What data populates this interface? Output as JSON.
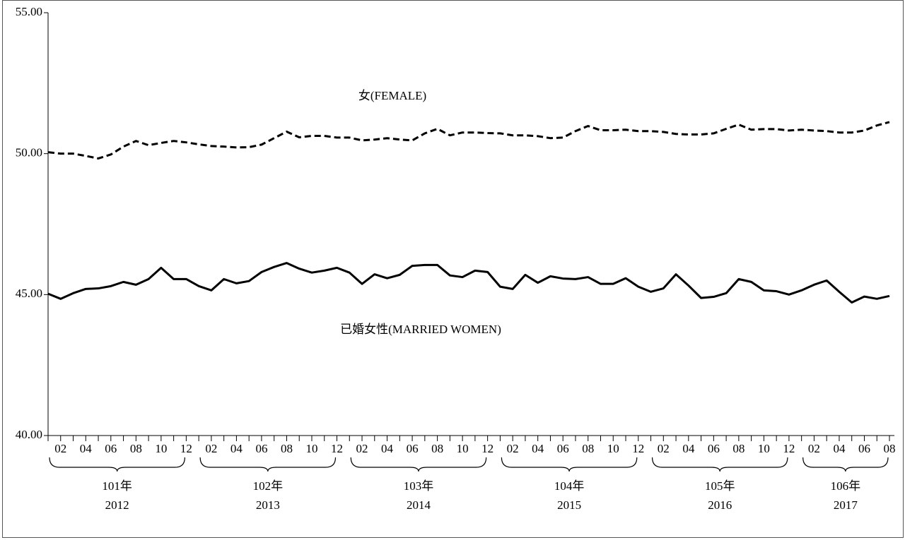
{
  "chart_data": {
    "type": "line",
    "categories": [
      null,
      "02",
      null,
      "04",
      null,
      "06",
      null,
      "08",
      null,
      "10",
      null,
      "12",
      null,
      "02",
      null,
      "04",
      null,
      "06",
      null,
      "08",
      null,
      "10",
      null,
      "12",
      null,
      "02",
      null,
      "04",
      null,
      "06",
      null,
      "08",
      null,
      "10",
      null,
      "12",
      null,
      "02",
      null,
      "04",
      null,
      "06",
      null,
      "08",
      null,
      "10",
      null,
      "12",
      null,
      "02",
      null,
      "04",
      null,
      "06",
      null,
      "08",
      null,
      "10",
      null,
      "12",
      null,
      "02",
      null,
      "04",
      null,
      "06",
      null,
      "08"
    ],
    "groups": [
      {
        "label": "101年",
        "year": "2012"
      },
      {
        "label": "102年",
        "year": "2013"
      },
      {
        "label": "103年",
        "year": "2014"
      },
      {
        "label": "104年",
        "year": "2015"
      },
      {
        "label": "105年",
        "year": "2016"
      },
      {
        "label": "106年",
        "year": "2017"
      }
    ],
    "series": [
      {
        "name": "女(FEMALE)",
        "color": "#000000",
        "dash": true,
        "values": [
          50.05,
          50.0,
          50.0,
          49.92,
          49.83,
          49.97,
          50.25,
          50.45,
          50.3,
          50.38,
          50.45,
          50.4,
          50.33,
          50.27,
          50.25,
          50.22,
          50.23,
          50.32,
          50.55,
          50.78,
          50.58,
          50.63,
          50.63,
          50.57,
          50.57,
          50.47,
          50.5,
          50.55,
          50.5,
          50.47,
          50.72,
          50.88,
          50.65,
          50.75,
          50.75,
          50.73,
          50.72,
          50.65,
          50.65,
          50.62,
          50.55,
          50.57,
          50.8,
          50.98,
          50.83,
          50.83,
          50.85,
          50.8,
          50.8,
          50.77,
          50.7,
          50.68,
          50.68,
          50.72,
          50.88,
          51.03,
          50.85,
          50.87,
          50.87,
          50.82,
          50.85,
          50.82,
          50.8,
          50.75,
          50.75,
          50.82,
          51.0,
          51.12
        ]
      },
      {
        "name": "已婚女性(MARRIED WOMEN)",
        "color": "#000000",
        "dash": false,
        "values": [
          45.03,
          44.85,
          45.05,
          45.2,
          45.22,
          45.3,
          45.45,
          45.35,
          45.55,
          45.95,
          45.55,
          45.55,
          45.3,
          45.15,
          45.55,
          45.4,
          45.48,
          45.8,
          45.98,
          46.12,
          45.92,
          45.78,
          45.85,
          45.95,
          45.78,
          45.38,
          45.72,
          45.58,
          45.7,
          46.02,
          46.05,
          46.05,
          45.68,
          45.62,
          45.85,
          45.8,
          45.28,
          45.2,
          45.7,
          45.42,
          45.65,
          45.57,
          45.55,
          45.62,
          45.38,
          45.38,
          45.58,
          45.28,
          45.1,
          45.22,
          45.72,
          45.32,
          44.88,
          44.92,
          45.05,
          45.55,
          45.45,
          45.15,
          45.12,
          45.0,
          45.15,
          45.35,
          45.5,
          45.1,
          44.72,
          44.93,
          44.85,
          44.95
        ]
      }
    ],
    "ylim": [
      40,
      55
    ],
    "yticks": [
      {
        "value": 40,
        "label": "40.00"
      },
      {
        "value": 45,
        "label": "45.00"
      },
      {
        "value": 50,
        "label": "50.00"
      },
      {
        "value": 55,
        "label": "55.00"
      }
    ],
    "grid": false
  }
}
